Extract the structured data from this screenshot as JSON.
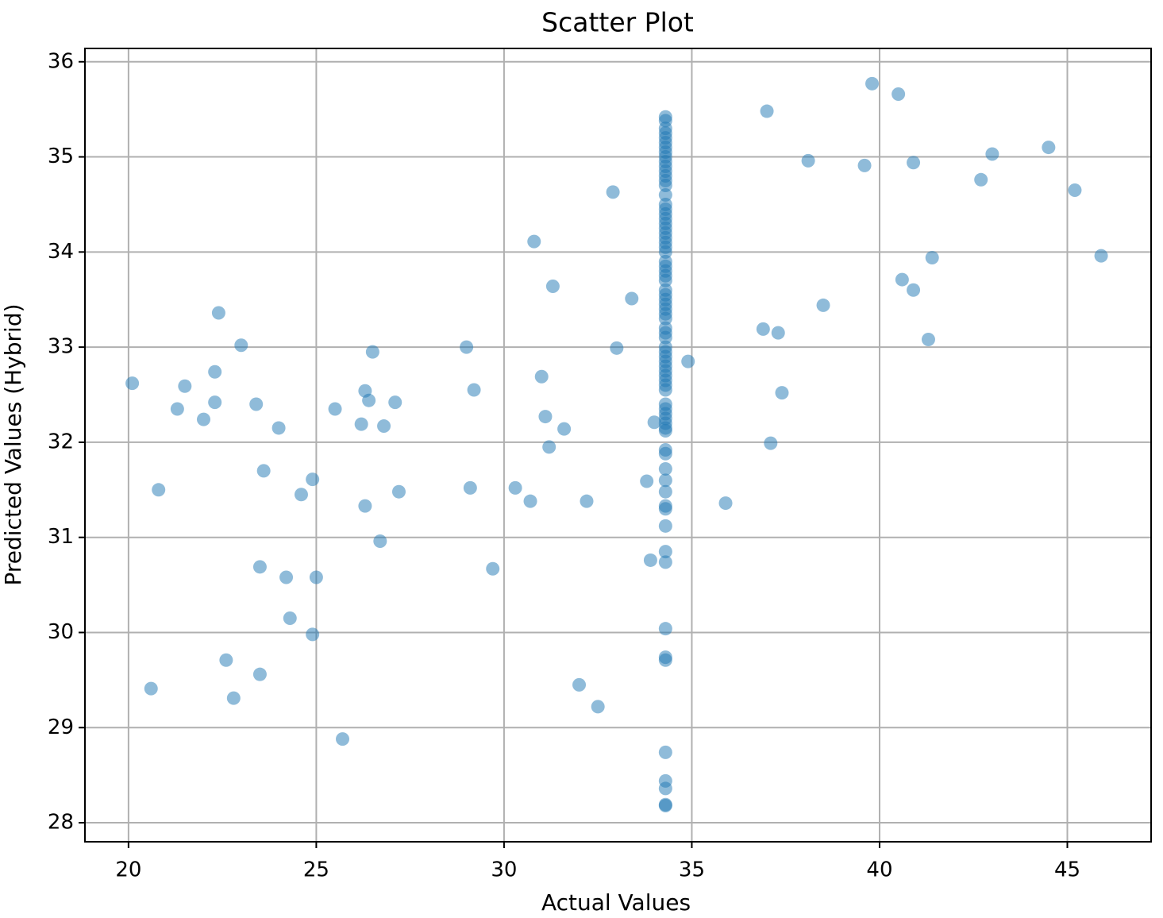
{
  "chart_data": {
    "type": "scatter",
    "title": "Scatter Plot",
    "x_label": "Actual Values",
    "y_label": "Predicted Values (Hybrid)",
    "xlim": [
      18.84,
      47.23
    ],
    "ylim": [
      27.8,
      36.14
    ],
    "xticks": [
      20,
      25,
      30,
      35,
      40,
      45
    ],
    "yticks": [
      28,
      29,
      30,
      31,
      32,
      33,
      34,
      35,
      36
    ],
    "grid": true,
    "color": "#1f77b4",
    "alpha": 0.5,
    "x": [
      20.1,
      20.8,
      20.6,
      21.3,
      21.5,
      22.0,
      22.3,
      22.3,
      22.4,
      22.6,
      22.8,
      23.0,
      23.4,
      23.5,
      23.5,
      23.6,
      24.0,
      24.2,
      24.3,
      24.6,
      24.9,
      24.9,
      25.0,
      25.5,
      25.7,
      26.2,
      26.3,
      26.3,
      26.4,
      26.5,
      26.7,
      26.8,
      27.1,
      27.2,
      29.0,
      29.1,
      29.2,
      29.7,
      30.3,
      30.7,
      30.8,
      31.0,
      31.1,
      31.2,
      31.3,
      31.6,
      32.0,
      32.2,
      32.5,
      32.9,
      33.0,
      33.4,
      33.8,
      33.9,
      34.0,
      34.9,
      35.9,
      36.9,
      37.0,
      37.1,
      37.3,
      37.4,
      38.1,
      38.5,
      39.6,
      39.8,
      40.5,
      40.6,
      40.9,
      40.9,
      41.3,
      41.4,
      42.7,
      43.0,
      44.5,
      45.2,
      45.9,
      34.3,
      34.3,
      34.3,
      34.3,
      34.3,
      34.3,
      34.3,
      34.3,
      34.3,
      34.3,
      34.3,
      34.3,
      34.3,
      34.3,
      34.3,
      34.3,
      34.3,
      34.3,
      34.3,
      34.3,
      34.3,
      34.3,
      34.3,
      34.3,
      34.3,
      34.3,
      34.3,
      34.3,
      34.3,
      34.3,
      34.3,
      34.3,
      34.3,
      34.3,
      34.3,
      34.3,
      34.3,
      34.3,
      34.3,
      34.3,
      34.3,
      34.3,
      34.3,
      34.3,
      34.3,
      34.3,
      34.3,
      34.3,
      34.3,
      34.3,
      34.3,
      34.3,
      34.3,
      34.3,
      34.3,
      34.3,
      34.3,
      34.3,
      34.3,
      34.3,
      34.3,
      34.3,
      34.3,
      34.3,
      34.3,
      34.3,
      34.3,
      34.3,
      34.3,
      34.3,
      34.3,
      34.3,
      34.3,
      34.3,
      34.3,
      34.3,
      34.3
    ],
    "values": [
      32.62,
      31.5,
      29.41,
      32.35,
      32.59,
      32.24,
      32.42,
      32.74,
      33.36,
      29.71,
      29.31,
      33.02,
      32.4,
      30.69,
      29.56,
      31.7,
      32.15,
      30.58,
      30.15,
      31.45,
      31.61,
      29.98,
      30.58,
      32.35,
      28.88,
      32.19,
      32.54,
      31.33,
      32.44,
      32.95,
      30.96,
      32.17,
      32.42,
      31.48,
      33.0,
      31.52,
      32.55,
      30.67,
      31.52,
      31.38,
      34.11,
      32.69,
      32.27,
      31.95,
      33.64,
      32.14,
      29.45,
      31.38,
      29.22,
      34.63,
      32.99,
      33.51,
      31.59,
      30.76,
      32.21,
      32.85,
      31.36,
      33.19,
      35.48,
      31.99,
      33.15,
      32.52,
      34.96,
      33.44,
      34.91,
      35.77,
      35.66,
      33.71,
      34.94,
      33.6,
      33.08,
      33.94,
      34.76,
      35.03,
      35.1,
      34.65,
      33.96,
      35.42,
      35.38,
      35.3,
      35.25,
      35.2,
      35.15,
      35.1,
      35.05,
      35.0,
      34.95,
      34.9,
      34.85,
      34.8,
      34.75,
      34.7,
      34.6,
      34.5,
      34.45,
      34.4,
      34.35,
      34.3,
      34.25,
      34.2,
      34.15,
      34.1,
      34.05,
      34.0,
      33.9,
      33.85,
      33.8,
      33.75,
      33.7,
      33.6,
      33.55,
      33.5,
      33.45,
      33.4,
      33.35,
      33.3,
      33.2,
      33.15,
      33.1,
      33.0,
      32.95,
      32.9,
      32.85,
      32.8,
      32.75,
      32.7,
      32.65,
      32.6,
      32.55,
      32.4,
      32.35,
      32.3,
      32.25,
      32.2,
      32.15,
      32.12,
      31.92,
      31.88,
      31.72,
      31.6,
      31.48,
      31.33,
      31.3,
      31.12,
      30.85,
      30.74,
      30.04,
      29.74,
      29.71,
      28.74,
      28.44,
      28.36,
      28.19,
      28.18
    ]
  }
}
